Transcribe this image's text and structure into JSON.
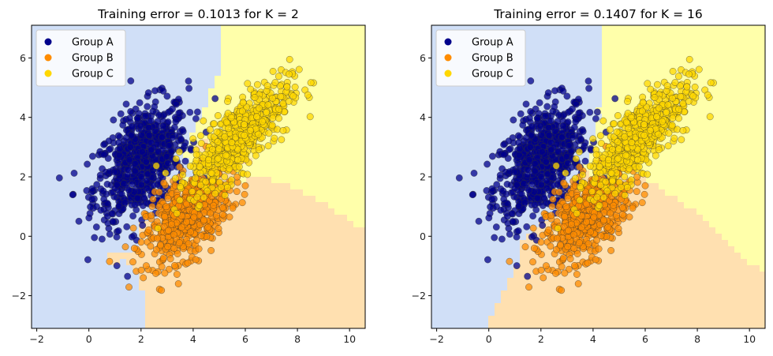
{
  "chart_data": [
    {
      "type": "scatter",
      "title": "Training error = 0.1013 for K = 2",
      "xlabel": "",
      "ylabel": "",
      "xlim": [
        -2.2,
        10.6
      ],
      "ylim": [
        -3.1,
        7.1
      ],
      "xticks": [
        "−2",
        "0",
        "2",
        "4",
        "6",
        "8",
        "10"
      ],
      "xtick_values": [
        -2,
        0,
        2,
        4,
        6,
        8,
        10
      ],
      "yticks": [
        "−2",
        "0",
        "2",
        "4",
        "6"
      ],
      "ytick_values": [
        -2,
        0,
        2,
        4,
        6
      ],
      "legend_position": "top-left",
      "grid": false,
      "k": 2,
      "training_error": 0.1013,
      "series": [
        {
          "name": "Group A",
          "color": "#00008b",
          "region_color": "#d0dff7",
          "center": [
            2.0,
            2.5
          ],
          "count": 700
        },
        {
          "name": "Group B",
          "color": "#ff8c00",
          "region_color": "#ffe0b0",
          "center": [
            3.8,
            0.7
          ],
          "count": 600
        },
        {
          "name": "Group C",
          "color": "#ffd700",
          "region_color": "#ffffaa",
          "center": [
            5.8,
            3.4
          ],
          "count": 600
        }
      ]
    },
    {
      "type": "scatter",
      "title": "Training error = 0.1407 for K = 16",
      "xlabel": "",
      "ylabel": "",
      "xlim": [
        -2.2,
        10.6
      ],
      "ylim": [
        -3.1,
        7.1
      ],
      "xticks": [
        "−2",
        "0",
        "2",
        "4",
        "6",
        "8",
        "10"
      ],
      "xtick_values": [
        -2,
        0,
        2,
        4,
        6,
        8,
        10
      ],
      "yticks": [
        "−2",
        "0",
        "2",
        "4",
        "6"
      ],
      "ytick_values": [
        -2,
        0,
        2,
        4,
        6
      ],
      "legend_position": "top-left",
      "grid": false,
      "k": 16,
      "training_error": 0.1407,
      "series": [
        {
          "name": "Group A",
          "color": "#00008b",
          "region_color": "#d0dff7",
          "center": [
            2.0,
            2.5
          ],
          "count": 700
        },
        {
          "name": "Group B",
          "color": "#ff8c00",
          "region_color": "#ffe0b0",
          "center": [
            3.8,
            0.7
          ],
          "count": 600
        },
        {
          "name": "Group C",
          "color": "#ffd700",
          "region_color": "#ffffaa",
          "center": [
            5.8,
            3.4
          ],
          "count": 600
        }
      ]
    }
  ]
}
